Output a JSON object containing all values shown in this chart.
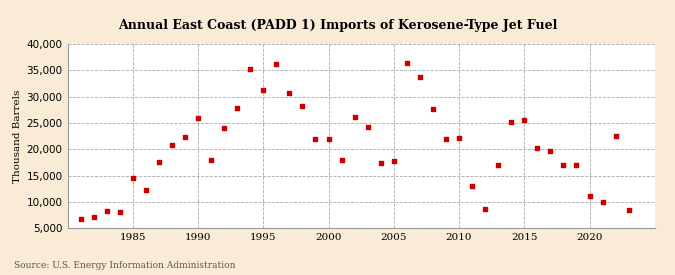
{
  "title": "Annual East Coast (PADD 1) Imports of Kerosene-Type Jet Fuel",
  "ylabel": "Thousand Barrels",
  "source": "Source: U.S. Energy Information Administration",
  "background_color": "#faebd7",
  "plot_bg_color": "#ffffff",
  "marker_color": "#cc0000",
  "ylim": [
    5000,
    40000
  ],
  "yticks": [
    5000,
    10000,
    15000,
    20000,
    25000,
    30000,
    35000,
    40000
  ],
  "xlim": [
    1980,
    2025
  ],
  "xticks": [
    1985,
    1990,
    1995,
    2000,
    2005,
    2010,
    2015,
    2020
  ],
  "years": [
    1981,
    1982,
    1983,
    1984,
    1985,
    1986,
    1987,
    1988,
    1989,
    1990,
    1991,
    1992,
    1993,
    1994,
    1995,
    1996,
    1997,
    1998,
    1999,
    2000,
    2001,
    2002,
    2003,
    2004,
    2005,
    2006,
    2007,
    2008,
    2009,
    2010,
    2011,
    2012,
    2013,
    2014,
    2015,
    2016,
    2017,
    2018,
    2019,
    2020,
    2021,
    2022,
    2023
  ],
  "values": [
    6700,
    7200,
    8200,
    8000,
    14500,
    12200,
    17500,
    20900,
    22300,
    26000,
    18000,
    24000,
    27800,
    35200,
    31200,
    36200,
    30700,
    28200,
    22000,
    21900,
    18000,
    26200,
    24200,
    17400,
    17700,
    36300,
    33800,
    27600,
    22000,
    22100,
    13000,
    8600,
    17100,
    25100,
    25500,
    20300,
    19600,
    17000,
    17000,
    11200,
    10000,
    22500,
    8500
  ]
}
